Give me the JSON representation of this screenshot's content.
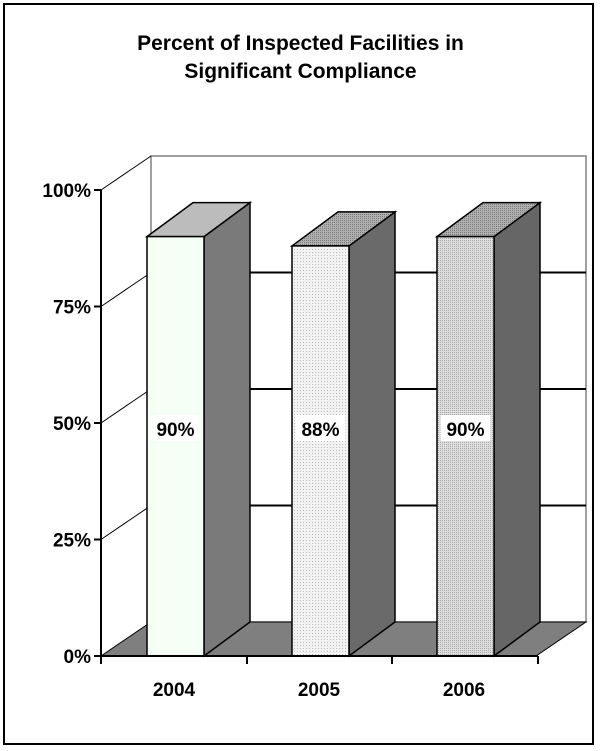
{
  "chart_data": {
    "type": "bar",
    "title": [
      "Percent of Inspected Facilities in",
      "Significant Compliance"
    ],
    "categories": [
      "2004",
      "2005",
      "2006"
    ],
    "values": [
      90,
      88,
      90
    ],
    "value_labels": [
      "90%",
      "88%",
      "90%"
    ],
    "y_ticks": [
      "0%",
      "25%",
      "50%",
      "75%",
      "100%"
    ],
    "ylim": [
      0,
      100
    ],
    "grid": true,
    "style": "3d-column",
    "colors": {
      "front": [
        "#f5fff5",
        "#e8e8e8",
        "#d2d2d2"
      ],
      "side": [
        "#7a7a7a",
        "#6a6a6a",
        "#666666"
      ],
      "top": [
        "#bcbcbc",
        "#9c9c9c",
        "#9a9a9a"
      ],
      "floor": "#7f7f7f",
      "wall": "#ffffff"
    }
  }
}
